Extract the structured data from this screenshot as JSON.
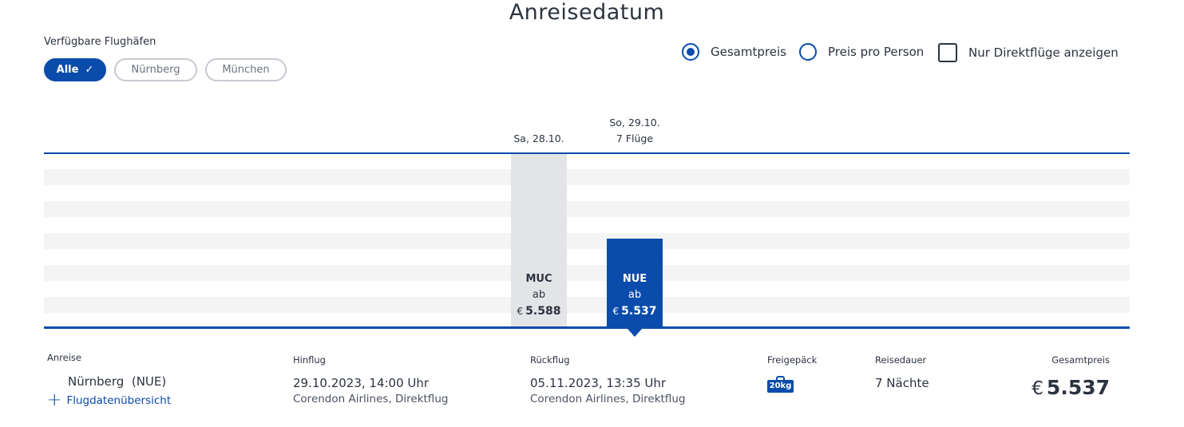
{
  "page": {
    "title": "Anreisedatum"
  },
  "airports": {
    "label": "Verfügbare Flughäfen",
    "options": [
      {
        "label": "Alle",
        "selected": true
      },
      {
        "label": "Nürnberg",
        "selected": false
      },
      {
        "label": "München",
        "selected": false
      }
    ]
  },
  "price_options": {
    "total": {
      "label": "Gesamtpreis",
      "selected": true
    },
    "per_person": {
      "label": "Preis pro Person",
      "selected": false
    },
    "direct_only": {
      "label": "Nur Direktflüge anzeigen",
      "checked": false
    }
  },
  "calendar": {
    "columns": [
      {
        "date": "Sa, 28.10.",
        "flights": "",
        "airport": "MUC",
        "prefix": "ab",
        "currency": "€",
        "price": "5.588",
        "selected": false
      },
      {
        "date": "So, 29.10.",
        "flights": "7 Flüge",
        "airport": "NUE",
        "prefix": "ab",
        "currency": "€",
        "price": "5.537",
        "selected": true
      }
    ]
  },
  "details": {
    "arrival_label": "Anreise",
    "arrival_value": "Nürnberg  (NUE)",
    "flight_overview_link": "Flugdatenübersicht",
    "outbound_label": "Hinflug",
    "outbound_datetime": "29.10.2023, 14:00 Uhr",
    "outbound_airline": "Corendon Airlines, Direktflug",
    "return_label": "Rückflug",
    "return_datetime": "05.11.2023, 13:35 Uhr",
    "return_airline": "Corendon Airlines, Direktflug",
    "baggage_label": "Freigepäck",
    "baggage_value": "20kg",
    "duration_label": "Reisedauer",
    "duration_value": "7 Nächte",
    "total_label": "Gesamtpreis",
    "total_currency": "€",
    "total_value": "5.537"
  },
  "colors": {
    "accent": "#0a4cab",
    "bar_inactive": "#e3e4e8",
    "text": "#2b3340"
  }
}
